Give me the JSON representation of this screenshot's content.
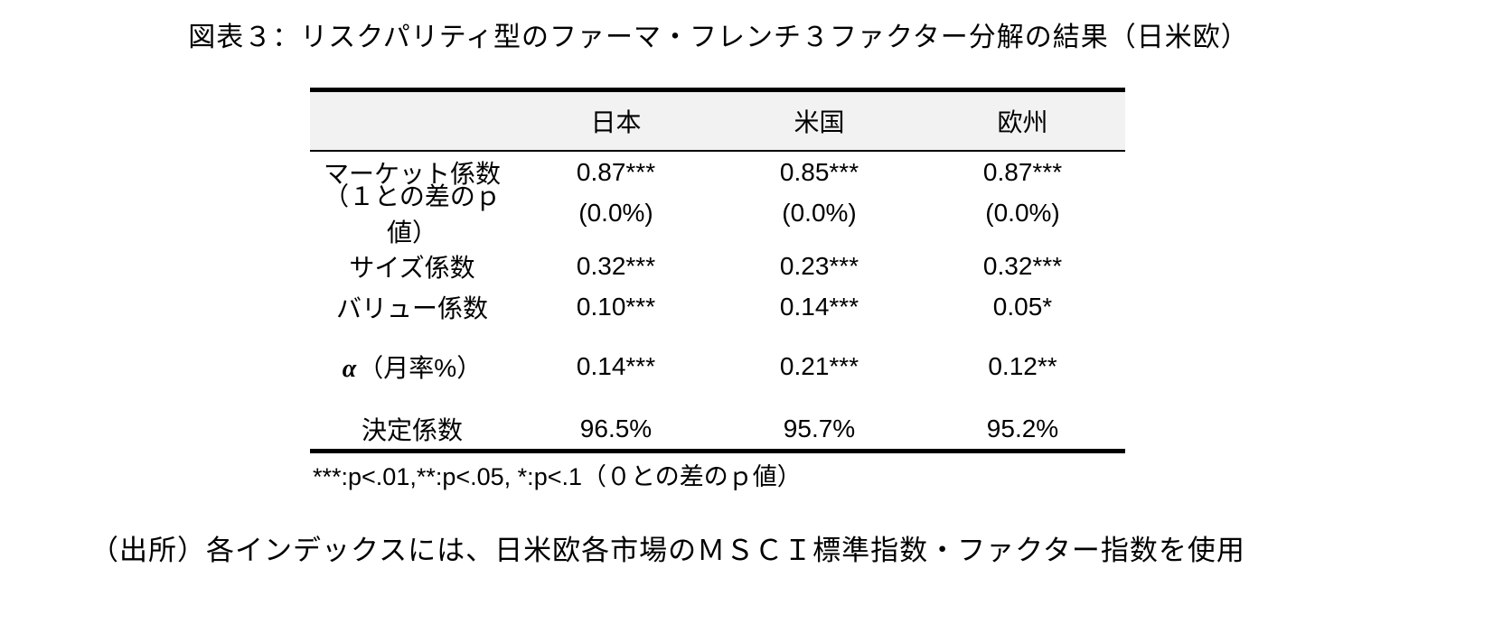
{
  "title": "図表３：リスクパリティ型のファーマ・フレンチ３ファクター分解の結果（日米欧）",
  "table": {
    "columns": [
      "日本",
      "米国",
      "欧州"
    ],
    "rows": [
      {
        "label": "マーケット係数",
        "values": [
          "0.87***",
          "0.85***",
          "0.87***"
        ]
      },
      {
        "label": "（１との差のｐ値）",
        "values": [
          "(0.0%)",
          "(0.0%)",
          "(0.0%)"
        ]
      },
      {
        "label": "サイズ係数",
        "values": [
          "0.32***",
          "0.23***",
          "0.32***"
        ]
      },
      {
        "label": "バリュー係数",
        "values": [
          "0.10***",
          "0.14***",
          "0.05*"
        ]
      },
      {
        "alpha": "α",
        "label": "（月率%）",
        "values": [
          "0.14***",
          "0.21***",
          "0.12**"
        ]
      },
      {
        "label": "決定係数",
        "values": [
          "96.5%",
          "95.7%",
          "95.2%"
        ]
      }
    ],
    "footnote": "***:p<.01,**:p<.05, *:p<.1（０との差のｐ値）"
  },
  "source": "（出所）各インデックスには、日米欧各市場のＭＳＣＩ標準指数・ファクター指数を使用"
}
